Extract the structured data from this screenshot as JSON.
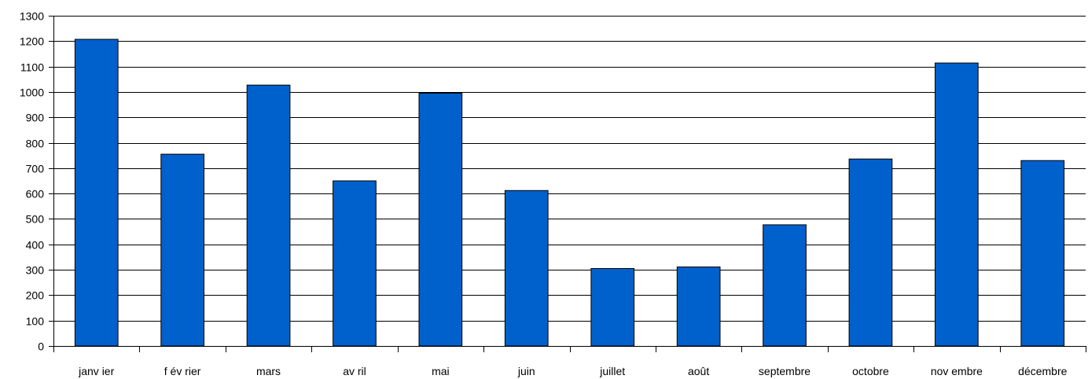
{
  "chart_data": {
    "type": "bar",
    "title": "",
    "xlabel": "",
    "ylabel": "",
    "categories": [
      "janv ier",
      "f év rier",
      "mars",
      "av ril",
      "mai",
      "juin",
      "juillet",
      "août",
      "septembre",
      "octobre",
      "nov embre",
      "décembre"
    ],
    "values": [
      1207,
      755,
      1027,
      650,
      995,
      612,
      305,
      311,
      477,
      736,
      1114,
      730
    ],
    "ylim": [
      0,
      1300
    ],
    "yticks": [
      0,
      100,
      200,
      300,
      400,
      500,
      600,
      700,
      800,
      900,
      1000,
      1100,
      1200,
      1300
    ],
    "grid": true,
    "legend": "none",
    "colors": {
      "bar": "#0060cc",
      "bar_stroke": "#000000",
      "grid": "#000000"
    }
  }
}
